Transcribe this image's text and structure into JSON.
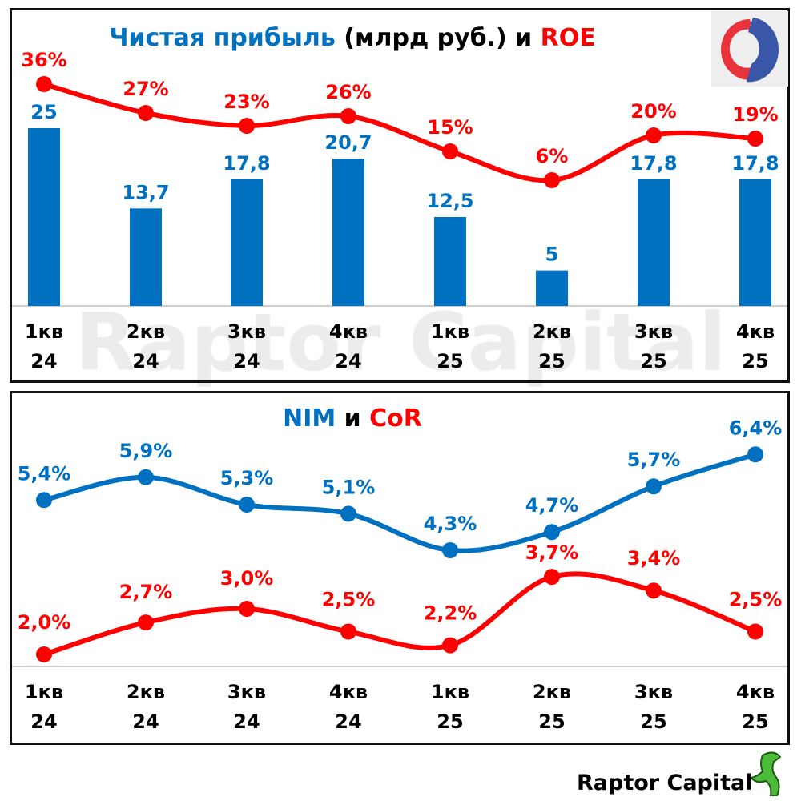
{
  "chart_data": [
    {
      "type": "bar+line",
      "title_parts": [
        {
          "text": "Чистая прибыль ",
          "color": "#0070c0"
        },
        {
          "text": "(млрд руб.)",
          "color": "#000000"
        },
        {
          "text": " и ",
          "color": "#000000"
        },
        {
          "text": "ROE",
          "color": "#ff0000"
        }
      ],
      "categories": [
        [
          "1кв",
          "24"
        ],
        [
          "2кв",
          "24"
        ],
        [
          "3кв",
          "24"
        ],
        [
          "4кв",
          "24"
        ],
        [
          "1кв",
          "25"
        ],
        [
          "2кв",
          "25"
        ],
        [
          "3кв",
          "25"
        ],
        [
          "4кв",
          "25"
        ]
      ],
      "series": [
        {
          "kind": "bar",
          "color": "#0070c0",
          "values": [
            25,
            13.7,
            17.8,
            20.7,
            12.5,
            5,
            17.8,
            17.8
          ],
          "labels": [
            "25",
            "13,7",
            "17,8",
            "20,7",
            "12,5",
            "5",
            "17,8",
            "17,8"
          ]
        },
        {
          "kind": "line",
          "color": "#ff0000",
          "values": [
            36,
            27,
            23,
            26,
            15,
            6,
            20,
            19
          ],
          "labels": [
            "36%",
            "27%",
            "23%",
            "26%",
            "15%",
            "6%",
            "20%",
            "19%"
          ]
        }
      ],
      "grid": false
    },
    {
      "type": "line",
      "title_parts": [
        {
          "text": "NIM",
          "color": "#0070c0"
        },
        {
          "text": " и ",
          "color": "#000000"
        },
        {
          "text": "CoR",
          "color": "#ff0000"
        }
      ],
      "categories": [
        [
          "1кв",
          "24"
        ],
        [
          "2кв",
          "24"
        ],
        [
          "3кв",
          "24"
        ],
        [
          "4кв",
          "24"
        ],
        [
          "1кв",
          "25"
        ],
        [
          "2кв",
          "25"
        ],
        [
          "3кв",
          "25"
        ],
        [
          "4кв",
          "25"
        ]
      ],
      "series": [
        {
          "color": "#0070c0",
          "values": [
            5.4,
            5.9,
            5.3,
            5.1,
            4.3,
            4.7,
            5.7,
            6.4
          ],
          "labels": [
            "5,4%",
            "5,9%",
            "5,3%",
            "5,1%",
            "4,3%",
            "4,7%",
            "5,7%",
            "6,4%"
          ]
        },
        {
          "color": "#ff0000",
          "values": [
            2.0,
            2.7,
            3.0,
            2.5,
            2.2,
            3.7,
            3.4,
            2.5
          ],
          "labels": [
            "2,0%",
            "2,7%",
            "3,0%",
            "2,5%",
            "2,2%",
            "3,7%",
            "3,4%",
            "2,5%"
          ]
        }
      ],
      "grid": false
    }
  ],
  "watermark": "Raptor Capital",
  "brand": "Raptor Capital"
}
